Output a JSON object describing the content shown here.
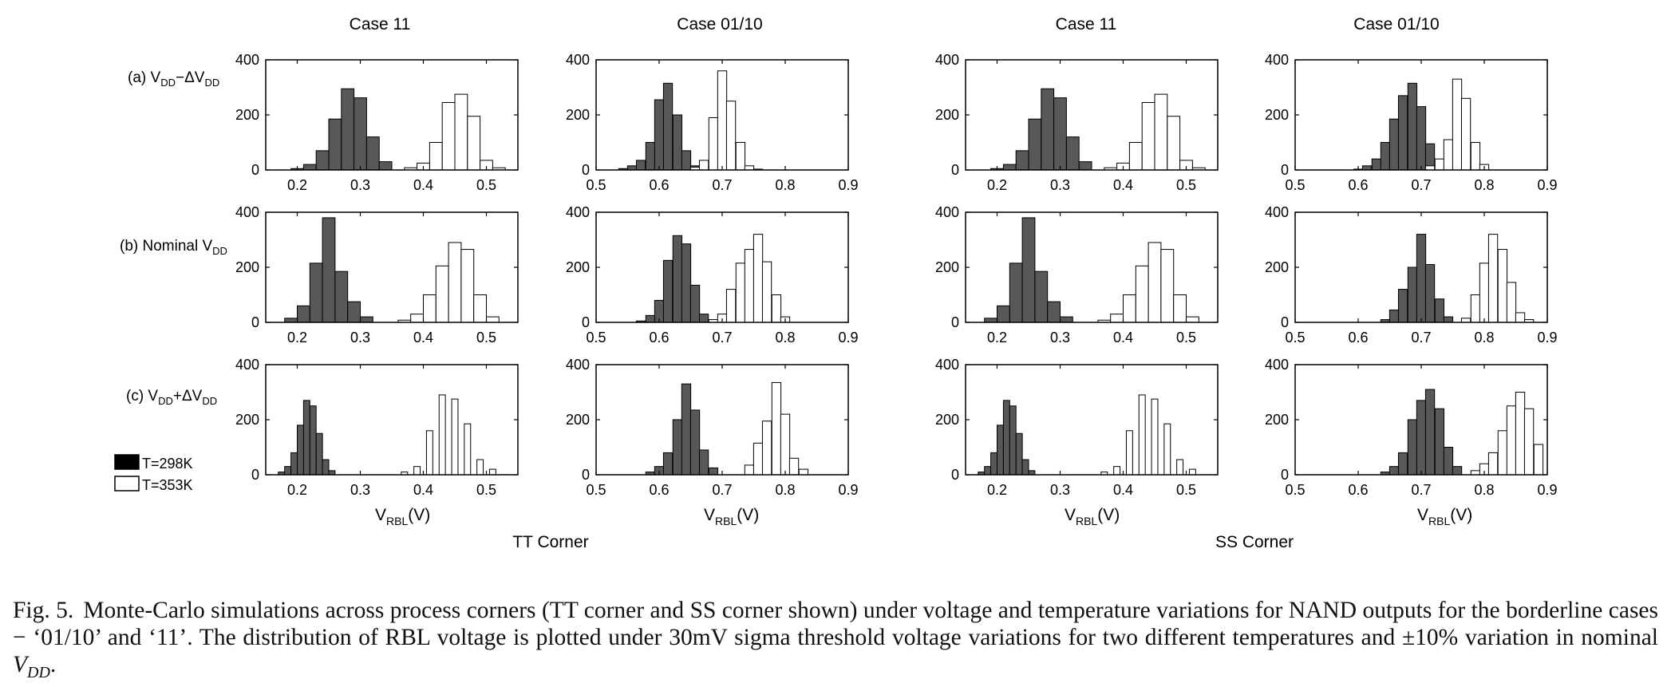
{
  "figure": {
    "column_titles": [
      "Case 11",
      "Case 01/10",
      "Case 11",
      "Case 01/10"
    ],
    "row_labels": [
      {
        "prefix": "(a) V",
        "sub1": "DD",
        "op": "−ΔV",
        "sub2": "DD"
      },
      {
        "prefix": "(b) Nominal V",
        "sub1": "DD",
        "op": "",
        "sub2": ""
      },
      {
        "prefix": "(c) V",
        "sub1": "DD",
        "op": "+ΔV",
        "sub2": "DD"
      }
    ],
    "xlabel": {
      "main": "V",
      "sub": "RBL",
      "unit": "(V)"
    },
    "corner_labels": [
      "TT Corner",
      "SS Corner"
    ],
    "legend": [
      {
        "label": "T=298K",
        "color": "#000000"
      },
      {
        "label": "T=353K",
        "color": "#ffffff"
      }
    ],
    "colors": {
      "hot_bars": "#585858",
      "cold_bars": "#ffffff",
      "axes": "#000000"
    }
  },
  "caption": {
    "label": "Fig. 5.",
    "text": "Monte-Carlo simulations across process corners (TT corner and SS corner shown) under voltage and temperature variations for NAND outputs for the borderline cases − ‘01/10’ and ‘11’. The distribution of RBL voltage is plotted under 30mV sigma threshold voltage variations for two different temperatures and ±10% variation in nominal ",
    "math_main": "V",
    "math_sub": "DD",
    "end": "."
  },
  "chart_data": [
    {
      "type": "bar",
      "corner": "TT",
      "case": "11",
      "row": "a",
      "xlim": [
        0.15,
        0.55
      ],
      "ylim": [
        0,
        400
      ],
      "xticks": [
        0.2,
        0.3,
        0.4,
        0.5
      ],
      "yticks": [
        0,
        200,
        400
      ],
      "bin_width": 0.02,
      "series": [
        {
          "name": "T=298K",
          "x": [
            0.2,
            0.22,
            0.24,
            0.26,
            0.28,
            0.3,
            0.32,
            0.34
          ],
          "values": [
            5,
            20,
            70,
            185,
            295,
            262,
            120,
            30
          ]
        },
        {
          "name": "T=353K",
          "x": [
            0.38,
            0.4,
            0.42,
            0.44,
            0.46,
            0.48,
            0.5,
            0.52
          ],
          "values": [
            8,
            25,
            100,
            245,
            275,
            195,
            35,
            8
          ]
        }
      ]
    },
    {
      "type": "bar",
      "corner": "TT",
      "case": "01/10",
      "row": "a",
      "xlim": [
        0.5,
        0.9
      ],
      "ylim": [
        0,
        400
      ],
      "xticks": [
        0.5,
        0.6,
        0.7,
        0.8,
        0.9
      ],
      "yticks": [
        0,
        200,
        400
      ],
      "bin_width": 0.0143,
      "series": [
        {
          "name": "T=298K",
          "x": [
            0.543,
            0.557,
            0.571,
            0.586,
            0.6,
            0.614,
            0.629,
            0.643,
            0.657
          ],
          "values": [
            5,
            15,
            35,
            100,
            255,
            315,
            200,
            70,
            15
          ]
        },
        {
          "name": "T=353K",
          "x": [
            0.657,
            0.671,
            0.686,
            0.7,
            0.714,
            0.729,
            0.743,
            0.757
          ],
          "values": [
            10,
            35,
            190,
            360,
            250,
            100,
            15,
            3
          ]
        }
      ]
    },
    {
      "type": "bar",
      "corner": "SS",
      "case": "11",
      "row": "a",
      "xlim": [
        0.15,
        0.55
      ],
      "ylim": [
        0,
        400
      ],
      "xticks": [
        0.2,
        0.3,
        0.4,
        0.5
      ],
      "yticks": [
        0,
        200,
        400
      ],
      "bin_width": 0.02,
      "series": [
        {
          "name": "T=298K",
          "x": [
            0.2,
            0.22,
            0.24,
            0.26,
            0.28,
            0.3,
            0.32,
            0.34
          ],
          "values": [
            5,
            20,
            70,
            185,
            295,
            262,
            120,
            30
          ]
        },
        {
          "name": "T=353K",
          "x": [
            0.38,
            0.4,
            0.42,
            0.44,
            0.46,
            0.48,
            0.5,
            0.52
          ],
          "values": [
            8,
            25,
            100,
            245,
            275,
            195,
            35,
            8
          ]
        }
      ]
    },
    {
      "type": "bar",
      "corner": "SS",
      "case": "01/10",
      "row": "a",
      "xlim": [
        0.5,
        0.9
      ],
      "ylim": [
        0,
        400
      ],
      "xticks": [
        0.5,
        0.6,
        0.7,
        0.8,
        0.9
      ],
      "yticks": [
        0,
        200,
        400
      ],
      "bin_width": 0.0143,
      "series": [
        {
          "name": "T=298K",
          "x": [
            0.6,
            0.614,
            0.629,
            0.643,
            0.657,
            0.671,
            0.686,
            0.7,
            0.714
          ],
          "values": [
            3,
            15,
            40,
            100,
            185,
            270,
            315,
            230,
            95
          ]
        },
        {
          "name": "T=353K",
          "x": [
            0.714,
            0.729,
            0.743,
            0.757,
            0.771,
            0.786,
            0.8
          ],
          "values": [
            15,
            40,
            110,
            330,
            260,
            100,
            20
          ]
        }
      ]
    },
    {
      "type": "bar",
      "corner": "TT",
      "case": "11",
      "row": "b",
      "xlim": [
        0.15,
        0.55
      ],
      "ylim": [
        0,
        400
      ],
      "xticks": [
        0.2,
        0.3,
        0.4,
        0.5
      ],
      "yticks": [
        0,
        200,
        400
      ],
      "bin_width": 0.02,
      "series": [
        {
          "name": "T=298K",
          "x": [
            0.19,
            0.21,
            0.23,
            0.25,
            0.27,
            0.29,
            0.31
          ],
          "values": [
            15,
            60,
            215,
            380,
            185,
            75,
            20
          ]
        },
        {
          "name": "T=353K",
          "x": [
            0.37,
            0.39,
            0.41,
            0.43,
            0.45,
            0.47,
            0.49,
            0.51
          ],
          "values": [
            8,
            30,
            100,
            205,
            290,
            265,
            100,
            20
          ]
        }
      ]
    },
    {
      "type": "bar",
      "corner": "TT",
      "case": "01/10",
      "row": "b",
      "xlim": [
        0.5,
        0.9
      ],
      "ylim": [
        0,
        400
      ],
      "xticks": [
        0.5,
        0.6,
        0.7,
        0.8,
        0.9
      ],
      "yticks": [
        0,
        200,
        400
      ],
      "bin_width": 0.0143,
      "series": [
        {
          "name": "T=298K",
          "x": [
            0.571,
            0.586,
            0.6,
            0.614,
            0.629,
            0.643,
            0.657,
            0.671
          ],
          "values": [
            5,
            25,
            80,
            225,
            315,
            285,
            135,
            30
          ]
        },
        {
          "name": "T=353K",
          "x": [
            0.686,
            0.7,
            0.714,
            0.729,
            0.743,
            0.757,
            0.771,
            0.786,
            0.8
          ],
          "values": [
            10,
            30,
            120,
            215,
            265,
            320,
            220,
            100,
            20
          ]
        }
      ]
    },
    {
      "type": "bar",
      "corner": "SS",
      "case": "11",
      "row": "b",
      "xlim": [
        0.15,
        0.55
      ],
      "ylim": [
        0,
        400
      ],
      "xticks": [
        0.2,
        0.3,
        0.4,
        0.5
      ],
      "yticks": [
        0,
        200,
        400
      ],
      "bin_width": 0.02,
      "series": [
        {
          "name": "T=298K",
          "x": [
            0.19,
            0.21,
            0.23,
            0.25,
            0.27,
            0.29,
            0.31
          ],
          "values": [
            15,
            60,
            215,
            380,
            185,
            75,
            20
          ]
        },
        {
          "name": "T=353K",
          "x": [
            0.37,
            0.39,
            0.41,
            0.43,
            0.45,
            0.47,
            0.49,
            0.51
          ],
          "values": [
            8,
            30,
            100,
            205,
            290,
            265,
            100,
            20
          ]
        }
      ]
    },
    {
      "type": "bar",
      "corner": "SS",
      "case": "01/10",
      "row": "b",
      "xlim": [
        0.5,
        0.9
      ],
      "ylim": [
        0,
        400
      ],
      "xticks": [
        0.5,
        0.6,
        0.7,
        0.8,
        0.9
      ],
      "yticks": [
        0,
        200,
        400
      ],
      "bin_width": 0.0143,
      "series": [
        {
          "name": "T=298K",
          "x": [
            0.643,
            0.657,
            0.671,
            0.686,
            0.7,
            0.714,
            0.729,
            0.743
          ],
          "values": [
            10,
            45,
            120,
            200,
            320,
            210,
            85,
            20
          ]
        },
        {
          "name": "T=353K",
          "x": [
            0.771,
            0.786,
            0.8,
            0.814,
            0.829,
            0.843,
            0.857,
            0.871
          ],
          "values": [
            15,
            100,
            215,
            320,
            265,
            145,
            35,
            10
          ]
        }
      ]
    },
    {
      "type": "bar",
      "corner": "TT",
      "case": "11",
      "row": "c",
      "xlim": [
        0.15,
        0.55
      ],
      "ylim": [
        0,
        400
      ],
      "xticks": [
        0.2,
        0.3,
        0.4,
        0.5
      ],
      "yticks": [
        0,
        200,
        400
      ],
      "bin_width": 0.01,
      "series": [
        {
          "name": "T=298K",
          "x": [
            0.175,
            0.185,
            0.195,
            0.205,
            0.215,
            0.225,
            0.235,
            0.245,
            0.255
          ],
          "values": [
            10,
            30,
            80,
            180,
            270,
            250,
            150,
            55,
            15
          ]
        },
        {
          "name": "T=353K",
          "x": [
            0.37,
            0.39,
            0.41,
            0.43,
            0.45,
            0.47,
            0.49,
            0.51
          ],
          "values": [
            10,
            30,
            160,
            290,
            275,
            185,
            55,
            20
          ]
        }
      ]
    },
    {
      "type": "bar",
      "corner": "TT",
      "case": "01/10",
      "row": "c",
      "xlim": [
        0.5,
        0.9
      ],
      "ylim": [
        0,
        400
      ],
      "xticks": [
        0.5,
        0.6,
        0.7,
        0.8,
        0.9
      ],
      "yticks": [
        0,
        200,
        400
      ],
      "bin_width": 0.0143,
      "series": [
        {
          "name": "T=298K",
          "x": [
            0.586,
            0.6,
            0.614,
            0.629,
            0.643,
            0.657,
            0.671,
            0.686
          ],
          "values": [
            10,
            30,
            80,
            200,
            330,
            235,
            90,
            25
          ]
        },
        {
          "name": "T=353K",
          "x": [
            0.743,
            0.757,
            0.771,
            0.786,
            0.8,
            0.814,
            0.829
          ],
          "values": [
            35,
            115,
            195,
            335,
            220,
            60,
            20
          ]
        }
      ]
    },
    {
      "type": "bar",
      "corner": "SS",
      "case": "11",
      "row": "c",
      "xlim": [
        0.15,
        0.55
      ],
      "ylim": [
        0,
        400
      ],
      "xticks": [
        0.2,
        0.3,
        0.4,
        0.5
      ],
      "yticks": [
        0,
        200,
        400
      ],
      "bin_width": 0.01,
      "series": [
        {
          "name": "T=298K",
          "x": [
            0.175,
            0.185,
            0.195,
            0.205,
            0.215,
            0.225,
            0.235,
            0.245,
            0.255
          ],
          "values": [
            10,
            30,
            80,
            180,
            270,
            250,
            150,
            55,
            15
          ]
        },
        {
          "name": "T=353K",
          "x": [
            0.37,
            0.39,
            0.41,
            0.43,
            0.45,
            0.47,
            0.49,
            0.51
          ],
          "values": [
            10,
            30,
            160,
            290,
            275,
            185,
            55,
            20
          ]
        }
      ]
    },
    {
      "type": "bar",
      "corner": "SS",
      "case": "01/10",
      "row": "c",
      "xlim": [
        0.5,
        0.9
      ],
      "ylim": [
        0,
        400
      ],
      "xticks": [
        0.5,
        0.6,
        0.7,
        0.8,
        0.9
      ],
      "yticks": [
        0,
        200,
        400
      ],
      "bin_width": 0.0143,
      "series": [
        {
          "name": "T=298K",
          "x": [
            0.643,
            0.657,
            0.671,
            0.686,
            0.7,
            0.714,
            0.729,
            0.743,
            0.757
          ],
          "values": [
            10,
            30,
            80,
            200,
            270,
            310,
            240,
            100,
            30
          ]
        },
        {
          "name": "T=353K",
          "x": [
            0.786,
            0.8,
            0.814,
            0.829,
            0.843,
            0.857,
            0.871,
            0.886
          ],
          "values": [
            15,
            40,
            80,
            160,
            250,
            300,
            240,
            110
          ]
        }
      ]
    }
  ]
}
